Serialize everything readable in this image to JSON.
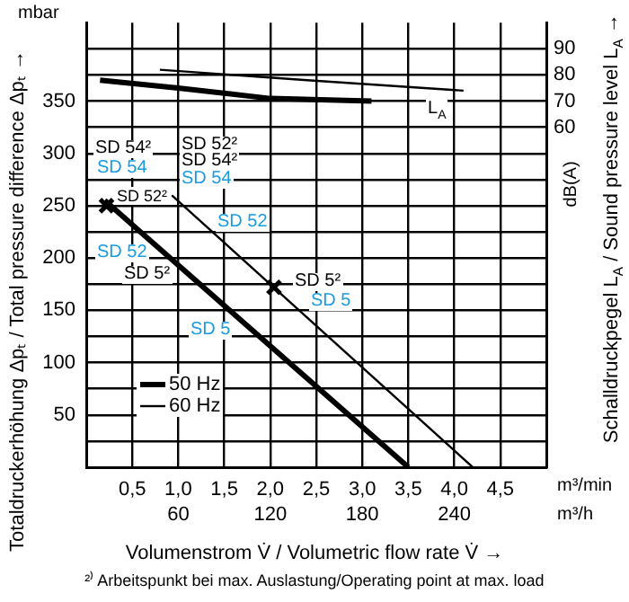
{
  "chart_data": {
    "type": "line",
    "xlabel": "Volumenstrom V̇ / Volumetric flow rate V̇ →",
    "ylabel": "Totaldruckerhöhung Δpₜ / Total pressure difference Δpₜ →",
    "y2label": "Schalldruckpegel L$_{A}$ / Sound pressure level L$_{A}$ →",
    "xlim": [
      0,
      5
    ],
    "xticks": [
      {
        "value": 0.5,
        "label": "0,5"
      },
      {
        "value": 1,
        "label": "1,0"
      },
      {
        "value": 1.5,
        "label": "1,5"
      },
      {
        "value": 2,
        "label": "2,0"
      },
      {
        "value": 2.5,
        "label": "2,5"
      },
      {
        "value": 3,
        "label": "3,0"
      },
      {
        "value": 3.5,
        "label": "3,5"
      },
      {
        "value": 4,
        "label": "4,0"
      },
      {
        "value": 4.5,
        "label": "4,5"
      }
    ],
    "x2lim": [
      0,
      300
    ],
    "x2ticks": [
      60,
      120,
      180,
      240
    ],
    "ylim": [
      0,
      425
    ],
    "yticks": [
      {
        "value": 25,
        "label": null
      },
      50,
      {
        "value": 75,
        "label": null
      },
      100,
      {
        "value": 125,
        "label": null
      },
      150,
      {
        "value": 175,
        "label": null
      },
      200,
      {
        "value": 225,
        "label": null
      },
      250,
      {
        "value": 275,
        "label": null
      },
      300,
      {
        "value": 325,
        "label": null
      },
      350,
      {
        "value": 375,
        "label": null
      },
      {
        "value": 400,
        "label": null
      }
    ],
    "y2lim": [
      -70,
      100
    ],
    "y2ticks": [
      60,
      70,
      80,
      90
    ],
    "grid": true,
    "legend": "bottom left",
    "marker": "none",
    "line_style": "solid",
    "series": [
      {
        "name": "50 Hz",
        "color": "#000000",
        "x": [
          0.2,
          3.5
        ],
        "values": [
          255,
          0
        ]
      },
      {
        "name": "60 Hz",
        "color": "#000000",
        "x": [
          0.93,
          4.2
        ],
        "values": [
          260,
          0
        ]
      },
      {
        "color": "#000000",
        "axis": "y2",
        "x": [
          0.15,
          1.0,
          2.0,
          3.1
        ],
        "values": [
          78,
          75,
          71,
          70
        ]
      },
      {
        "color": "#000000",
        "axis": "y2",
        "x": [
          0.8,
          2.4,
          4.1
        ],
        "values": [
          82,
          78,
          74
        ]
      },
      {
        "type": "scatter",
        "marker": "cross",
        "color": "#000000",
        "x": [
          0.22,
          2.04
        ],
        "values": [
          250,
          172
        ]
      }
    ],
    "annotations": [
      "SD 54²",
      "SD 54",
      "SD 52²",
      "SD 54²",
      "SD 54",
      "SD 52²",
      "SD 52",
      "SD 52",
      "SD 5²",
      "SD 5²",
      "SD 5",
      "SD 5",
      "L$_{A}$",
      "mbar",
      "dB(A)",
      "m³/min",
      "m³/h",
      "²⁾ Arbeitspunkt bei max. Auslastung/Operating point at max. load"
    ]
  }
}
